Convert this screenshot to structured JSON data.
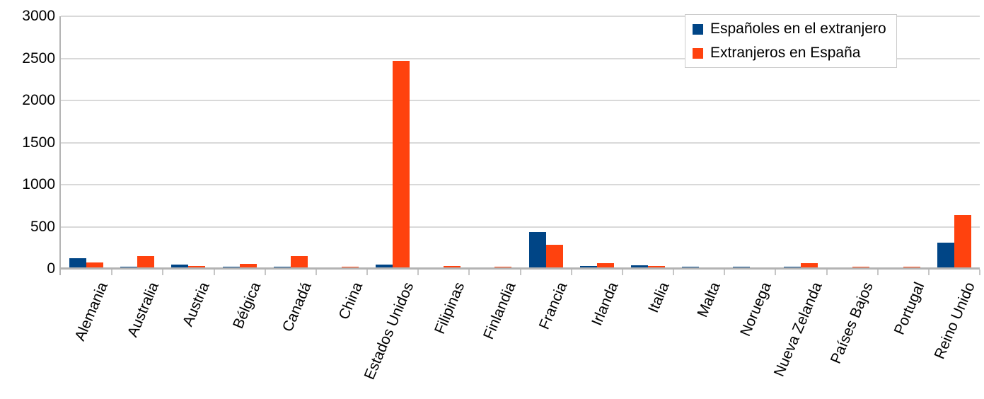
{
  "chart_data": {
    "type": "bar",
    "title": "",
    "xlabel": "",
    "ylabel": "",
    "categories": [
      "Alemania",
      "Australia",
      "Austria",
      "Bélgica",
      "Canadá",
      "China",
      "Estados Unidos",
      "Filipinas",
      "Finlandia",
      "Francia",
      "Irlanda",
      "Italia",
      "Malta",
      "Noruega",
      "Nueva Zelanda",
      "Países Bajos",
      "Portugal",
      "Reino Unido"
    ],
    "series": [
      {
        "name": "Españoles en el extranjero",
        "color": "#004586",
        "values": [
          115,
          20,
          40,
          20,
          20,
          0,
          40,
          0,
          0,
          425,
          25,
          35,
          15,
          20,
          15,
          0,
          0,
          300
        ]
      },
      {
        "name": "Extranjeros en España",
        "color": "#ff420e",
        "values": [
          70,
          140,
          25,
          50,
          145,
          20,
          2465,
          25,
          20,
          280,
          55,
          25,
          10,
          0,
          60,
          15,
          20,
          630
        ]
      }
    ],
    "ylim": [
      0,
      3000
    ],
    "yticks": [
      0,
      500,
      1000,
      1500,
      2000,
      2500,
      3000
    ],
    "grid": "horizontal",
    "legend_position": "top-right",
    "bar_orientation": "vertical"
  },
  "colors": {
    "series1": "#004586",
    "series2": "#ff420e",
    "gridline": "#d9d9d9",
    "axis": "#b3b3b3",
    "background": "#ffffff",
    "text": "#000000"
  }
}
